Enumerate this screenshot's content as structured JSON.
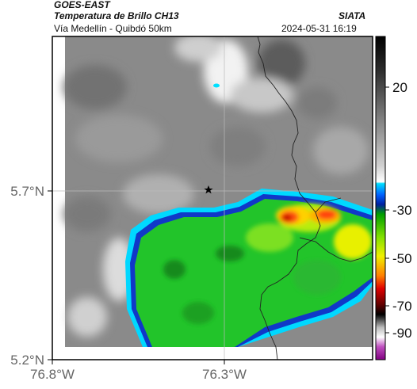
{
  "header": {
    "satellite": "GOES-EAST",
    "product": "Temperatura de Brillo CH13",
    "region": "Vía Medellín - Quibdó 50km",
    "agency": "SIATA",
    "datetime": "2024-05-31 16:19"
  },
  "map": {
    "lat_labels": [
      "5.7°N",
      "5.2°N"
    ],
    "lon_labels": [
      "76.8°W",
      "76.3°W"
    ],
    "marker_icon": "star-icon"
  },
  "colorbar": {
    "labels": [
      "20",
      "-30",
      "-50",
      "-70",
      "-90"
    ],
    "colors": {
      "warm_gray": "#9a9a9a",
      "cyan": "#00e0ff",
      "blue": "#1030c0",
      "green": "#22c022",
      "yellow": "#f0f000",
      "red": "#e01010",
      "magenta": "#c040c0"
    }
  }
}
